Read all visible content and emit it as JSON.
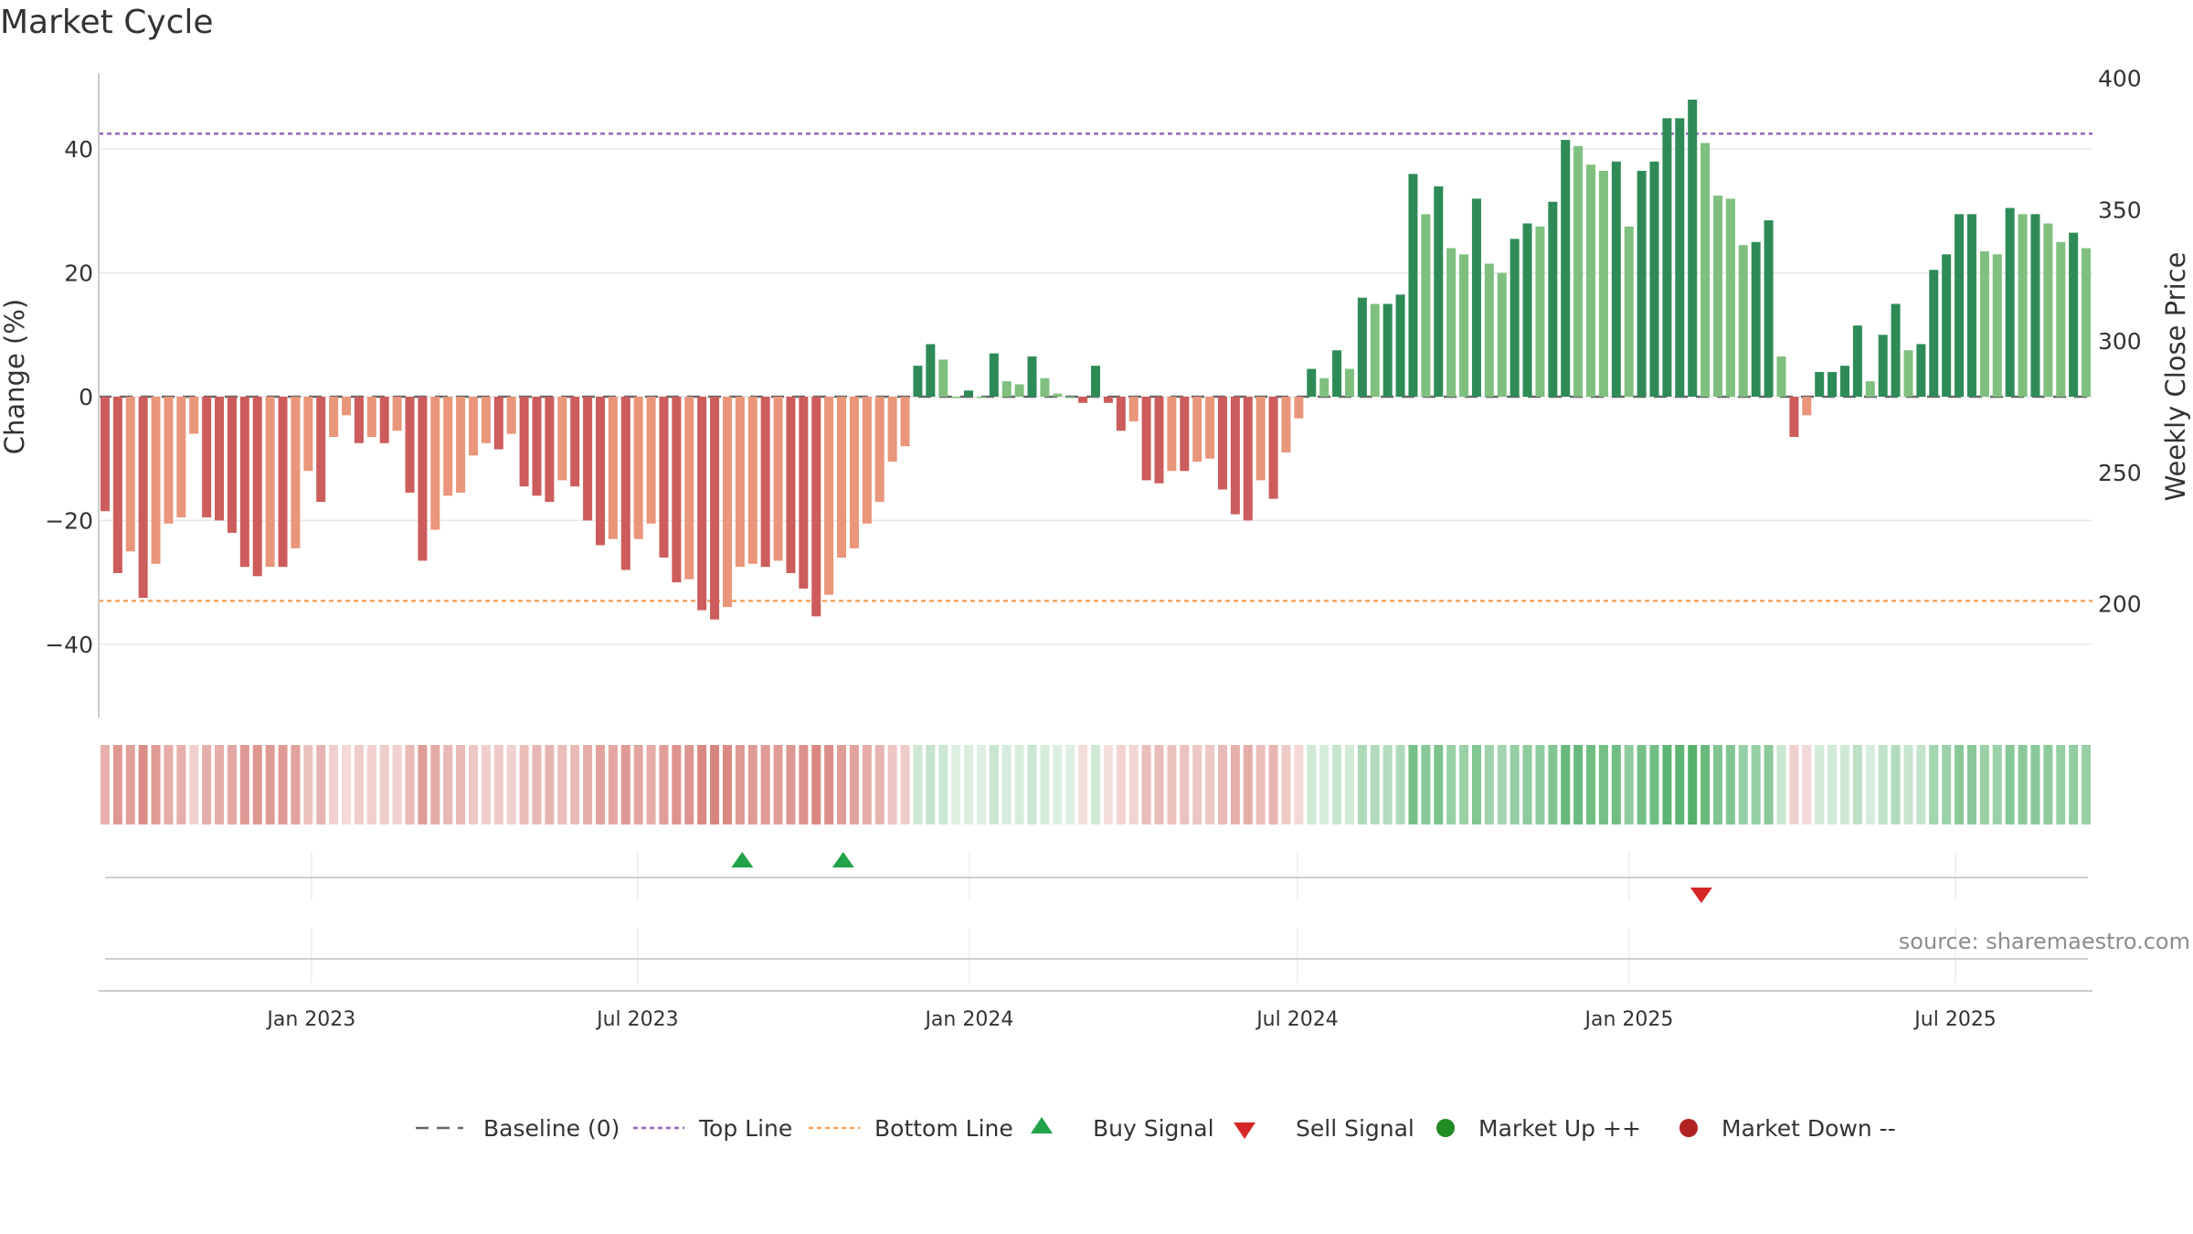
{
  "title": "Market Cycle",
  "source": "source: sharemaestro.com",
  "colors": {
    "gain_dark": "#2e8b57",
    "gain_light": "#7fc07f",
    "loss_dark": "#cd5c5c",
    "loss_light": "#e9967a",
    "top_line": "#9467bd",
    "bottom_line": "#f4a460",
    "baseline": "#666666",
    "buy": "#22a34a",
    "sell": "#d62728",
    "market_up": "#228b22",
    "market_down": "#b22222",
    "heat_pos": "#41a85b",
    "heat_neg": "#c9554c"
  },
  "chart_data": {
    "type": "bar",
    "ylabel_left": "Change (%)",
    "ylabel_right": "Weekly Close Price",
    "ylim_left": [
      -52,
      53
    ],
    "ylim_right": [
      147.5,
      400
    ],
    "yticks_left": [
      40,
      20,
      0,
      -20,
      -40
    ],
    "yticks_left_labels": [
      "40",
      "20",
      "0",
      "−20",
      "−40"
    ],
    "yticks_right": [
      400,
      350,
      300,
      250,
      200
    ],
    "x_start": "2022-09-05",
    "x_end": "2025-09-15",
    "x_ticks": [
      {
        "date": "2023-01-01",
        "label": "Jan 2023"
      },
      {
        "date": "2023-07-01",
        "label": "Jul 2023"
      },
      {
        "date": "2024-01-01",
        "label": "Jan 2024"
      },
      {
        "date": "2024-07-01",
        "label": "Jul 2024"
      },
      {
        "date": "2025-01-01",
        "label": "Jan 2025"
      },
      {
        "date": "2025-07-01",
        "label": "Jul 2025"
      }
    ],
    "top_line": 42.5,
    "bottom_line": -33,
    "baseline": 0,
    "grid": true,
    "legend_position": "bottom-center",
    "values": [
      -18.5,
      -28.5,
      -25,
      -32.5,
      -27,
      -20.5,
      -19.5,
      -6,
      -19.5,
      -20,
      -22,
      -27.5,
      -29,
      -27.5,
      -27.5,
      -24.5,
      -12,
      -17,
      -6.5,
      -3,
      -7.5,
      -6.5,
      -7.5,
      -5.5,
      -15.5,
      -26.5,
      -21.5,
      -16,
      -15.5,
      -9.5,
      -7.5,
      -8.5,
      -6,
      -14.5,
      -16,
      -17,
      -13.5,
      -14.5,
      -20,
      -24,
      -23,
      -28,
      -23,
      -20.5,
      -26,
      -30,
      -29.5,
      -34.5,
      -36,
      -34,
      -27.5,
      -27,
      -27.5,
      -26.5,
      -28.5,
      -31,
      -35.5,
      -32,
      -26,
      -24.5,
      -20.5,
      -17,
      -10.5,
      -8,
      5,
      8.5,
      6,
      0,
      1,
      0,
      7,
      2.5,
      2,
      6.5,
      3,
      0.5,
      0,
      -1,
      5,
      -1,
      -5.5,
      -4,
      -13.5,
      -14,
      -12,
      -12,
      -10.5,
      -10,
      -15,
      -19,
      -20,
      -13.5,
      -16.5,
      -9,
      -3.5,
      4.5,
      3,
      7.5,
      4.5,
      16,
      15,
      15,
      16.5,
      36,
      29.5,
      34,
      24,
      23,
      32,
      21.5,
      20,
      25.5,
      28,
      27.5,
      31.5,
      41.5,
      40.5,
      37.5,
      36.5,
      38,
      27.5,
      36.5,
      38,
      45,
      45,
      48,
      41,
      32.5,
      32,
      24.5,
      25,
      28.5,
      6.5,
      -6.5,
      -3,
      4,
      4,
      5,
      11.5,
      2.5,
      10,
      15,
      7.5,
      8.5,
      20.5,
      23,
      29.5,
      29.5,
      23.5,
      23,
      30.5,
      29.5,
      29.5,
      28,
      25,
      26.5,
      24
    ],
    "buy_signals": [
      "2023-08-28",
      "2023-10-23"
    ],
    "sell_signals": [
      "2025-02-10"
    ]
  },
  "legend": [
    {
      "key": "baseline",
      "label": "Baseline (0)"
    },
    {
      "key": "top",
      "label": "Top Line"
    },
    {
      "key": "bottom",
      "label": "Bottom Line"
    },
    {
      "key": "buy",
      "label": "Buy Signal"
    },
    {
      "key": "sell",
      "label": "Sell Signal"
    },
    {
      "key": "up",
      "label": "Market Up ++"
    },
    {
      "key": "down",
      "label": "Market Down --"
    }
  ]
}
